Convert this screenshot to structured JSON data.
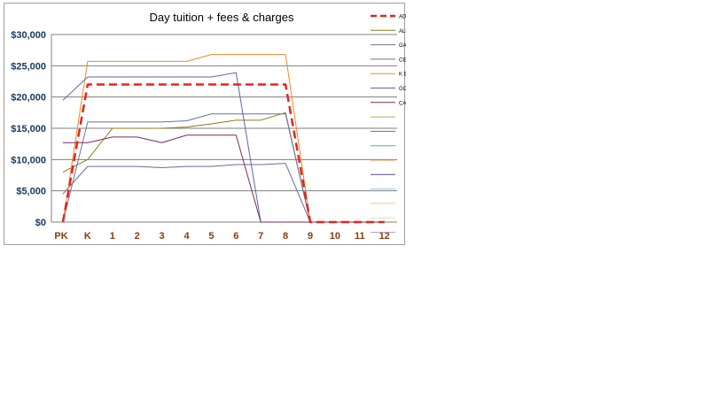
{
  "chart_data": {
    "type": "line",
    "title": "Day tuition + fees & charges",
    "xlabel": "",
    "ylabel": "",
    "ylim": [
      0,
      30000
    ],
    "yticks": [
      0,
      5000,
      10000,
      15000,
      20000,
      25000,
      30000
    ],
    "ytick_labels": [
      "$0",
      "$5,000",
      "$10,000",
      "$15,000",
      "$20,000",
      "$25,000",
      "$30,000"
    ],
    "grid": true,
    "legend_position": "right",
    "categories": [
      "PK",
      "K",
      "1",
      "2",
      "3",
      "4",
      "5",
      "6",
      "7",
      "8",
      "9",
      "10",
      "11",
      "12"
    ],
    "series": [
      {
        "name": "ADDA CLEV",
        "color": "#e8231a",
        "dashed": true,
        "values": [
          0,
          22000,
          22000,
          22000,
          22000,
          22000,
          22000,
          22000,
          22000,
          22000,
          0,
          0,
          0,
          0
        ]
      },
      {
        "name": "ALMADEN",
        "color": "#8c7a12",
        "dashed": false,
        "values": [
          8000,
          10000,
          15000,
          15000,
          15000,
          15200,
          15700,
          16300,
          16300,
          17500,
          0,
          0,
          0,
          0
        ]
      },
      {
        "name": "GATEWAY",
        "color": "#6a6fa8",
        "dashed": false,
        "values": [
          0,
          16000,
          16000,
          16000,
          16000,
          16200,
          17300,
          17300,
          17300,
          17300,
          0,
          0,
          0,
          0
        ]
      },
      {
        "name": "CEE",
        "color": "#6f6aa0",
        "dashed": false,
        "values": [
          4500,
          8900,
          8900,
          8900,
          8700,
          8900,
          8900,
          9200,
          9200,
          9400,
          0,
          0,
          0,
          0
        ]
      },
      {
        "name": "K BURKE'S",
        "color": "#f0882a",
        "dashed": false,
        "values": [
          0,
          25700,
          25700,
          25700,
          25700,
          25700,
          26800,
          26800,
          26800,
          26800,
          0,
          0,
          0,
          0
        ]
      },
      {
        "name": "GOLDEN HILLS",
        "color": "#5a67a8",
        "dashed": false,
        "values": [
          19500,
          23200,
          23200,
          23200,
          23200,
          23200,
          23200,
          23900,
          0,
          0,
          0,
          0,
          0,
          0
        ]
      },
      {
        "name": "CASA DI MIR",
        "color": "#7a2a5a",
        "dashed": false,
        "values": [
          12700,
          12700,
          13600,
          13600,
          12700,
          13900,
          13900,
          13900,
          0,
          0,
          0,
          0,
          0,
          0
        ]
      }
    ],
    "legend_unlabeled_swatches": [
      "#9bbb59",
      "#8064a2",
      "#4bacc6",
      "#f79646",
      "#604a7b",
      "#93cddd",
      "#fac090",
      "#d7e4bd",
      "#b3a2c7"
    ]
  }
}
